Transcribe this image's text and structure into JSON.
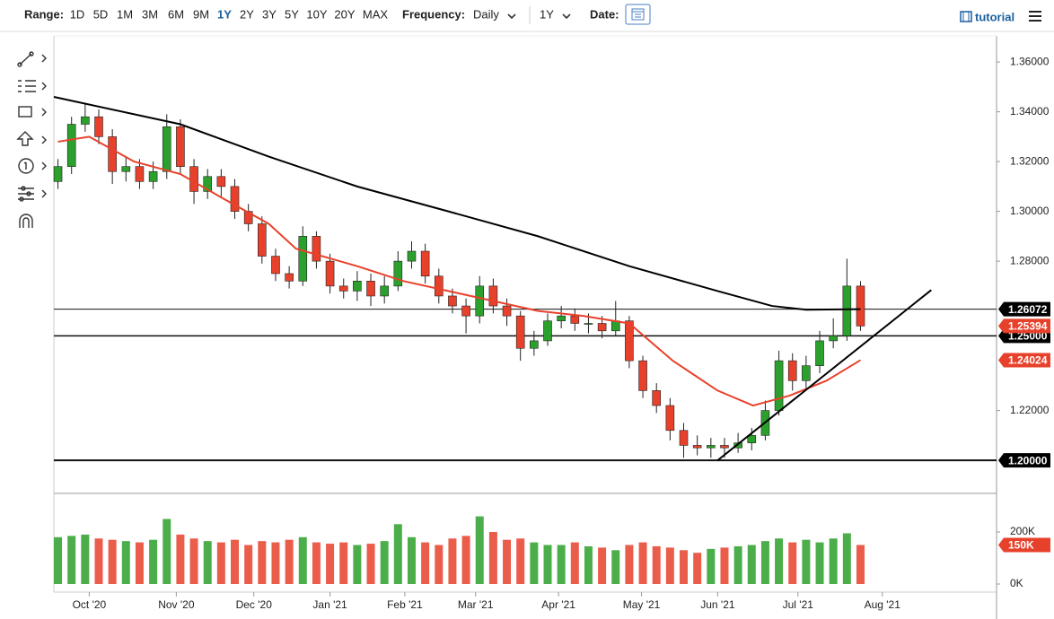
{
  "toolbar": {
    "range_label": "Range:",
    "ranges": [
      "1D",
      "5D",
      "1M",
      "3M",
      "6M",
      "9M",
      "1Y",
      "2Y",
      "3Y",
      "5Y",
      "10Y",
      "20Y",
      "MAX"
    ],
    "active_range": 6,
    "frequency_label": "Frequency:",
    "frequency": "Daily",
    "period": "1Y",
    "date_label": "Date:",
    "tutorial": "tutorial"
  },
  "chart_data": [
    {
      "type": "candlestick",
      "x": [
        0,
        1,
        2,
        3,
        4,
        5,
        6,
        7,
        8,
        9,
        10,
        11,
        12,
        13,
        14,
        15,
        16,
        17,
        18,
        19,
        20,
        21,
        22,
        23,
        24,
        25,
        26,
        27,
        28,
        29,
        30,
        31,
        32,
        33,
        34,
        35,
        36,
        37,
        38,
        39,
        40,
        41,
        42,
        43,
        44,
        45,
        46,
        47,
        48,
        49,
        50,
        51,
        52,
        53,
        54,
        55,
        56,
        57,
        58,
        59
      ],
      "xlim": [
        -0.3,
        69
      ],
      "xticks": [
        {
          "value": 2.3,
          "label": "Oct '20"
        },
        {
          "value": 8.7,
          "label": "Nov '20"
        },
        {
          "value": 14.4,
          "label": "Dec '20"
        },
        {
          "value": 20,
          "label": "Jan '21"
        },
        {
          "value": 25.5,
          "label": "Feb '21"
        },
        {
          "value": 30.7,
          "label": "Mar '21"
        },
        {
          "value": 36.8,
          "label": "Apr '21"
        },
        {
          "value": 42.9,
          "label": "May '21"
        },
        {
          "value": 48.5,
          "label": "Jun '21"
        },
        {
          "value": 54.4,
          "label": "Jul '21"
        },
        {
          "value": 60.6,
          "label": "Aug '21"
        }
      ],
      "ylim": [
        1.1867,
        1.3705
      ],
      "yticks": [
        {
          "value": 1.22,
          "label": "1.22000"
        },
        {
          "value": 1.28,
          "label": "1.28000"
        },
        {
          "value": 1.3,
          "label": "1.30000"
        },
        {
          "value": 1.32,
          "label": "1.32000"
        },
        {
          "value": 1.34,
          "label": "1.34000"
        },
        {
          "value": 1.36,
          "label": "1.36000"
        }
      ],
      "series": [
        {
          "type": "candlestick",
          "up_color": "#2ca02c",
          "down_color": "#e8412b",
          "last_label": "1.25394",
          "open": [
            1.312,
            1.318,
            1.335,
            1.338,
            1.33,
            1.316,
            1.318,
            1.312,
            1.316,
            1.334,
            1.318,
            1.308,
            1.314,
            1.31,
            1.3,
            1.295,
            1.282,
            1.275,
            1.272,
            1.29,
            1.28,
            1.27,
            1.268,
            1.272,
            1.266,
            1.27,
            1.28,
            1.284,
            1.274,
            1.266,
            1.262,
            1.258,
            1.27,
            1.262,
            1.258,
            1.245,
            1.248,
            1.256,
            1.258,
            1.255,
            1.255,
            1.252,
            1.256,
            1.24,
            1.228,
            1.222,
            1.212,
            1.206,
            1.205,
            1.206,
            1.205,
            1.207,
            1.21,
            1.22,
            1.24,
            1.232,
            1.238,
            1.248,
            1.25,
            1.27
          ],
          "high": [
            1.321,
            1.338,
            1.343,
            1.341,
            1.333,
            1.322,
            1.321,
            1.32,
            1.339,
            1.337,
            1.321,
            1.317,
            1.317,
            1.313,
            1.303,
            1.298,
            1.285,
            1.278,
            1.294,
            1.292,
            1.283,
            1.273,
            1.276,
            1.275,
            1.274,
            1.284,
            1.288,
            1.287,
            1.277,
            1.269,
            1.265,
            1.274,
            1.273,
            1.265,
            1.26,
            1.252,
            1.259,
            1.262,
            1.261,
            1.259,
            1.258,
            1.264,
            1.258,
            1.242,
            1.231,
            1.225,
            1.215,
            1.21,
            1.209,
            1.209,
            1.211,
            1.213,
            1.224,
            1.244,
            1.243,
            1.242,
            1.252,
            1.257,
            1.281,
            1.272
          ],
          "low": [
            1.309,
            1.315,
            1.332,
            1.327,
            1.311,
            1.312,
            1.309,
            1.309,
            1.313,
            1.315,
            1.303,
            1.305,
            1.306,
            1.297,
            1.292,
            1.279,
            1.272,
            1.269,
            1.27,
            1.277,
            1.267,
            1.265,
            1.264,
            1.262,
            1.263,
            1.268,
            1.277,
            1.271,
            1.263,
            1.259,
            1.251,
            1.255,
            1.259,
            1.254,
            1.24,
            1.242,
            1.246,
            1.253,
            1.252,
            1.251,
            1.249,
            1.25,
            1.237,
            1.225,
            1.219,
            1.208,
            1.201,
            1.202,
            1.201,
            1.201,
            1.203,
            1.204,
            1.208,
            1.218,
            1.228,
            1.229,
            1.235,
            1.245,
            1.248,
            1.252
          ],
          "close": [
            1.318,
            1.335,
            1.338,
            1.33,
            1.316,
            1.318,
            1.312,
            1.316,
            1.334,
            1.318,
            1.308,
            1.314,
            1.31,
            1.3,
            1.295,
            1.282,
            1.275,
            1.272,
            1.29,
            1.28,
            1.27,
            1.268,
            1.272,
            1.266,
            1.27,
            1.28,
            1.284,
            1.274,
            1.266,
            1.262,
            1.258,
            1.27,
            1.262,
            1.258,
            1.245,
            1.248,
            1.256,
            1.258,
            1.255,
            1.255,
            1.252,
            1.256,
            1.24,
            1.228,
            1.222,
            1.212,
            1.206,
            1.205,
            1.206,
            1.205,
            1.207,
            1.21,
            1.22,
            1.24,
            1.232,
            1.238,
            1.248,
            1.25,
            1.27,
            1.25394
          ]
        },
        {
          "type": "line",
          "color": "#000000",
          "x": [
            -0.3,
            9,
            15.5,
            22,
            28.7,
            35.3,
            42,
            48.5,
            52.5,
            55,
            59
          ],
          "values": [
            1.346,
            1.335,
            1.322,
            1.31,
            1.3,
            1.29,
            1.278,
            1.268,
            1.262,
            1.2605,
            1.26072
          ]
        },
        {
          "type": "line",
          "color": "#e8412b",
          "last_label": "1.24024",
          "x": [
            0,
            2.3,
            5.6,
            9,
            12.2,
            15.5,
            17.5,
            22,
            25.4,
            28.7,
            32,
            35.3,
            38.6,
            42,
            45.2,
            48.5,
            51.1,
            53.8,
            56.5,
            59
          ],
          "values": [
            1.328,
            1.33,
            1.32,
            1.315,
            1.305,
            1.295,
            1.285,
            1.278,
            1.272,
            1.268,
            1.264,
            1.26,
            1.258,
            1.255,
            1.24,
            1.228,
            1.222,
            1.226,
            1.232,
            1.24024
          ]
        }
      ],
      "hlines": [
        {
          "value": 1.26072,
          "label": "1.26072"
        },
        {
          "value": 1.25,
          "label": "1.25000"
        },
        {
          "value": 1.2,
          "label": "1.20000"
        }
      ],
      "trendline": {
        "x": [
          48.5,
          64.2
        ],
        "values": [
          1.2,
          1.2684
        ]
      }
    },
    {
      "type": "bar",
      "x": [
        0,
        1,
        2,
        3,
        4,
        5,
        6,
        7,
        8,
        9,
        10,
        11,
        12,
        13,
        14,
        15,
        16,
        17,
        18,
        19,
        20,
        21,
        22,
        23,
        24,
        25,
        26,
        27,
        28,
        29,
        30,
        31,
        32,
        33,
        34,
        35,
        36,
        37,
        38,
        39,
        40,
        41,
        42,
        43,
        44,
        45,
        46,
        47,
        48,
        49,
        50,
        51,
        52,
        53,
        54,
        55,
        56,
        57,
        58,
        59
      ],
      "ylim": [
        0,
        331000
      ],
      "yticks": [
        {
          "value": 0,
          "label": "0K"
        },
        {
          "value": 200000,
          "label": "200K"
        }
      ],
      "values": [
        180000,
        185000,
        190000,
        175000,
        170000,
        165000,
        160000,
        170000,
        250000,
        190000,
        175000,
        165000,
        160000,
        170000,
        150000,
        165000,
        160000,
        170000,
        180000,
        160000,
        155000,
        160000,
        150000,
        155000,
        165000,
        230000,
        180000,
        160000,
        150000,
        175000,
        185000,
        260000,
        200000,
        170000,
        175000,
        160000,
        150000,
        150000,
        160000,
        145000,
        140000,
        130000,
        150000,
        160000,
        145000,
        140000,
        130000,
        120000,
        135000,
        140000,
        145000,
        150000,
        165000,
        175000,
        160000,
        170000,
        160000,
        175000,
        195000,
        150000
      ],
      "value_labels": [
        null,
        null,
        null,
        null,
        null,
        null,
        null,
        null,
        null,
        null,
        null,
        null,
        null,
        null,
        null,
        null,
        null,
        null,
        null,
        null,
        null,
        null,
        null,
        null,
        null,
        null,
        null,
        null,
        null,
        null,
        null,
        null,
        null,
        null,
        null,
        null,
        null,
        null,
        null,
        null,
        null,
        null,
        null,
        null,
        null,
        null,
        null,
        null,
        null,
        null,
        null,
        null,
        null,
        null,
        null,
        null,
        null,
        null,
        null,
        "150K"
      ]
    }
  ]
}
